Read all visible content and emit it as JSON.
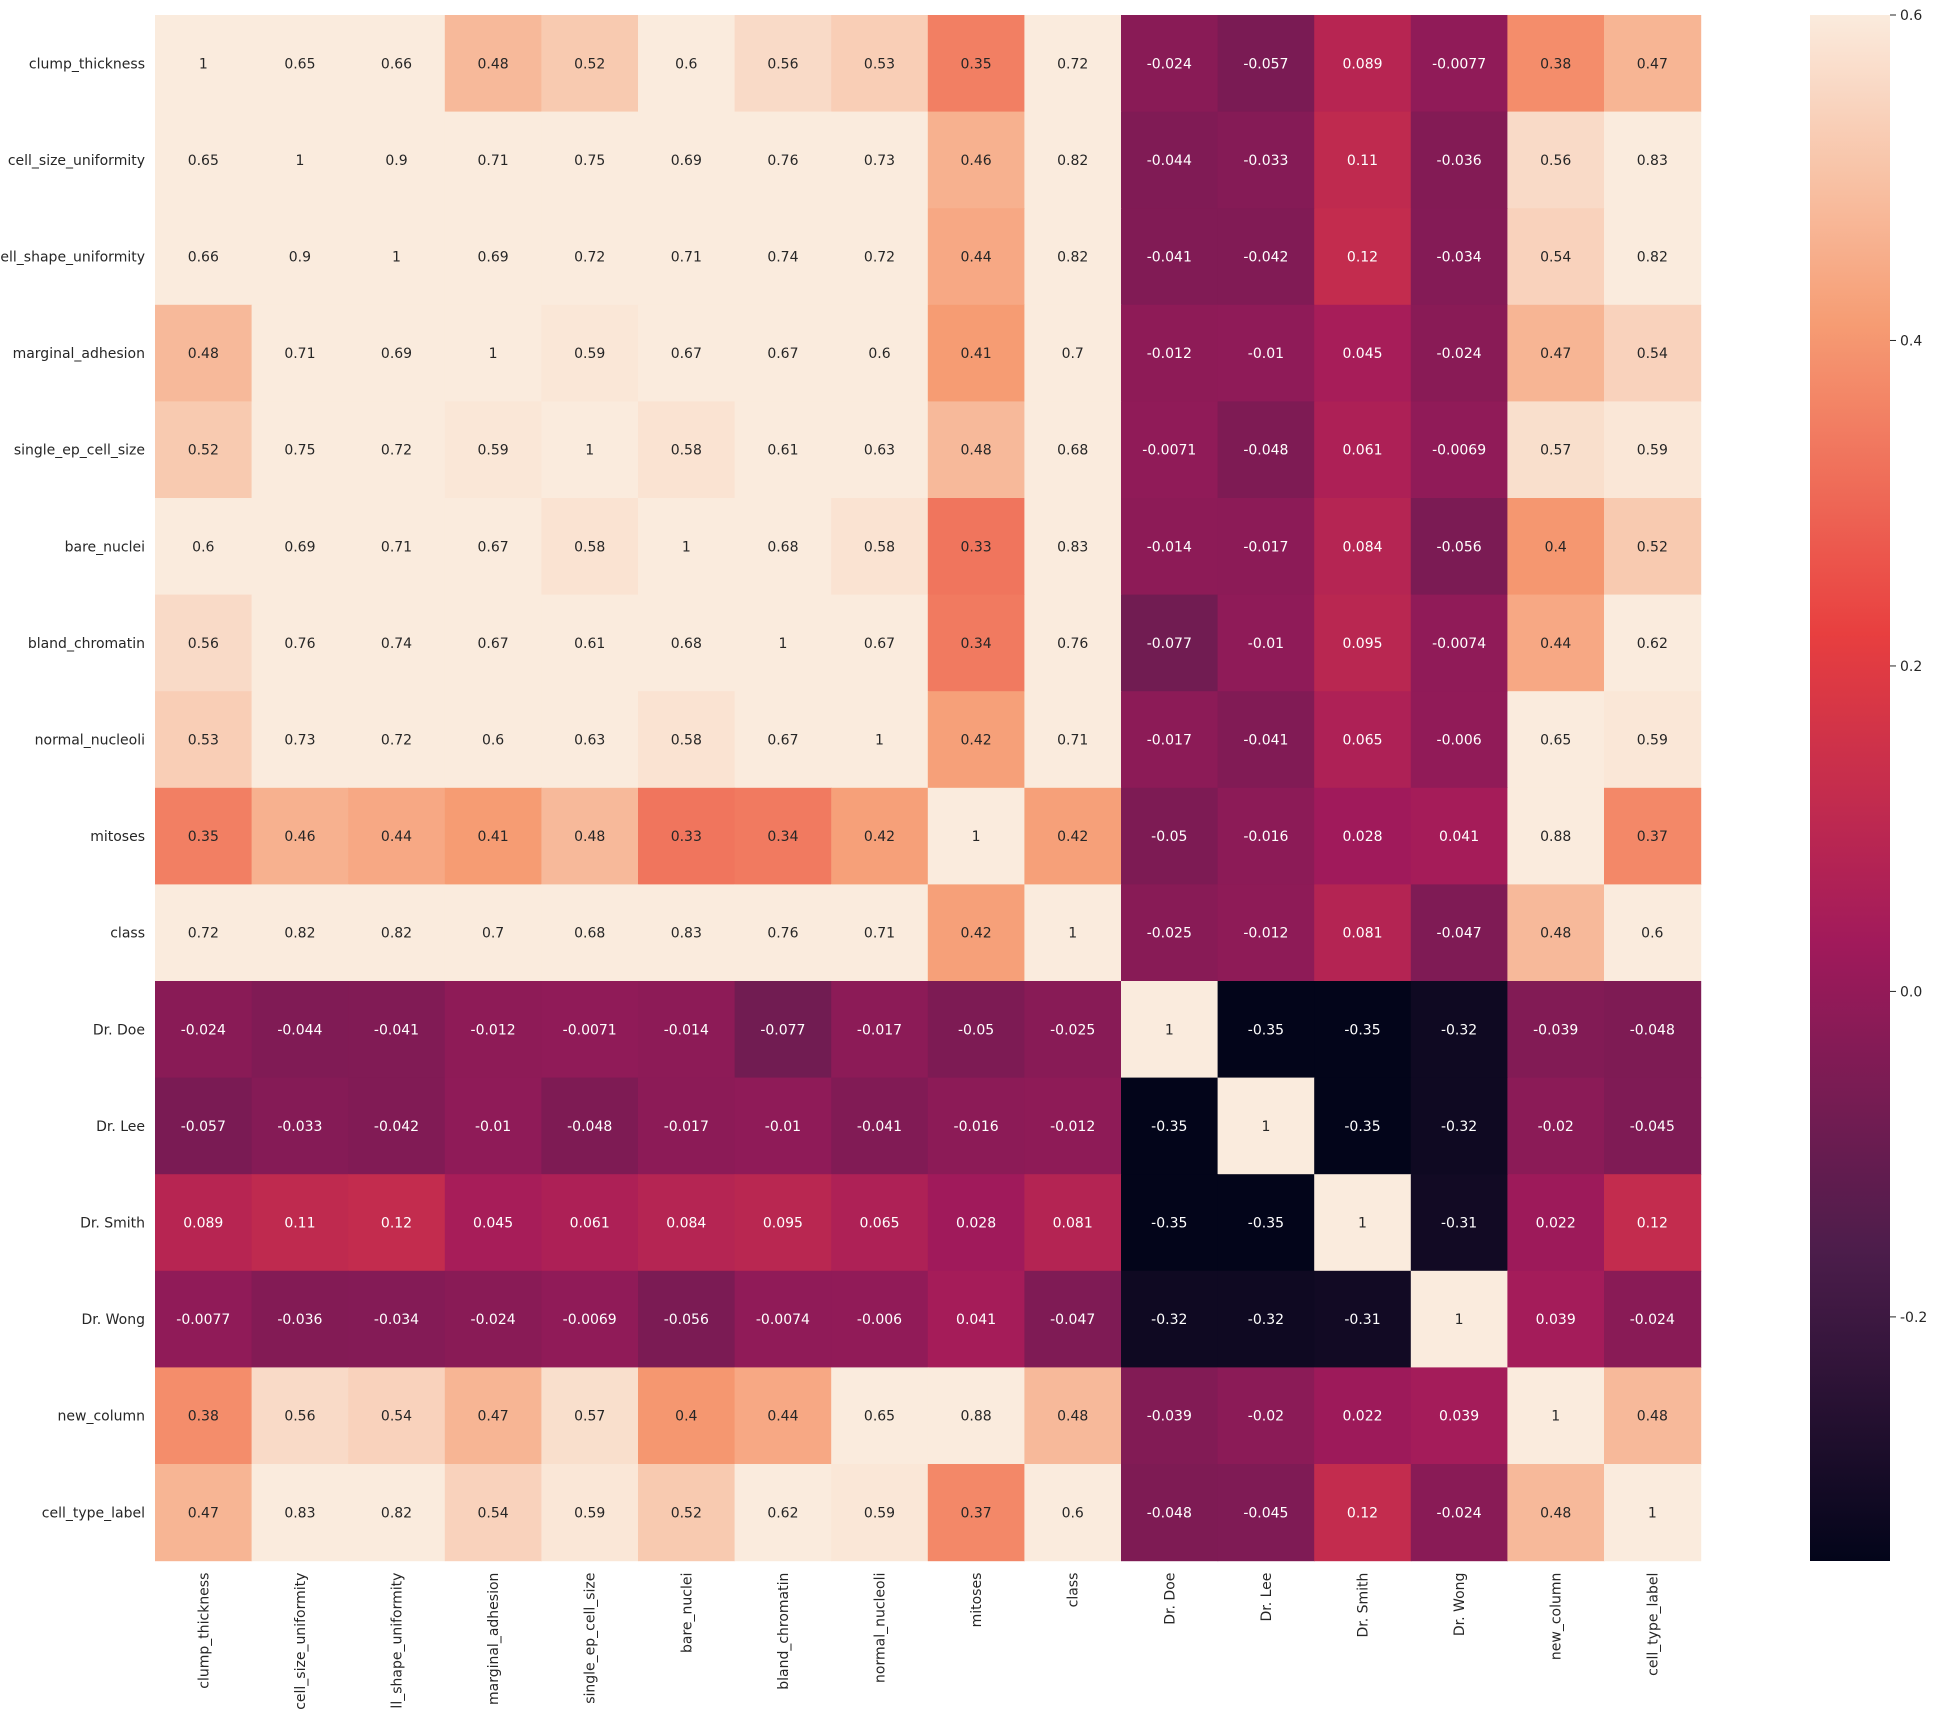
{
  "chart_data": {
    "type": "heatmap",
    "title": "",
    "xlabel": "",
    "ylabel": "",
    "rows": [
      "clump_thickness",
      "cell_size_uniformity",
      "cell_shape_uniformity",
      "marginal_adhesion",
      "single_ep_cell_size",
      "bare_nuclei",
      "bland_chromatin",
      "normal_nucleoli",
      "mitoses",
      "class",
      "Dr. Doe",
      "Dr. Lee",
      "Dr. Smith",
      "Dr. Wong",
      "new_column",
      "cell_type_label"
    ],
    "columns": [
      "clump_thickness",
      "cell_size_uniformity",
      "cell_shape_uniformity",
      "marginal_adhesion",
      "single_ep_cell_size",
      "bare_nuclei",
      "bland_chromatin",
      "normal_nucleoli",
      "mitoses",
      "class",
      "Dr. Doe",
      "Dr. Lee",
      "Dr. Smith",
      "Dr. Wong",
      "new_column",
      "cell_type_label"
    ],
    "values": [
      [
        1,
        0.65,
        0.66,
        0.48,
        0.52,
        0.6,
        0.56,
        0.53,
        0.35,
        0.72,
        -0.024,
        -0.057,
        0.089,
        -0.0077,
        0.38,
        0.47
      ],
      [
        0.65,
        1,
        0.9,
        0.71,
        0.75,
        0.69,
        0.76,
        0.73,
        0.46,
        0.82,
        -0.044,
        -0.033,
        0.11,
        -0.036,
        0.56,
        0.83
      ],
      [
        0.66,
        0.9,
        1,
        0.69,
        0.72,
        0.71,
        0.74,
        0.72,
        0.44,
        0.82,
        -0.041,
        -0.042,
        0.12,
        -0.034,
        0.54,
        0.82
      ],
      [
        0.48,
        0.71,
        0.69,
        1,
        0.59,
        0.67,
        0.67,
        0.6,
        0.41,
        0.7,
        -0.012,
        -0.01,
        0.045,
        -0.024,
        0.47,
        0.54
      ],
      [
        0.52,
        0.75,
        0.72,
        0.59,
        1,
        0.58,
        0.61,
        0.63,
        0.48,
        0.68,
        -0.0071,
        -0.048,
        0.061,
        -0.0069,
        0.57,
        0.59
      ],
      [
        0.6,
        0.69,
        0.71,
        0.67,
        0.58,
        1,
        0.68,
        0.58,
        0.33,
        0.83,
        -0.014,
        -0.017,
        0.084,
        -0.056,
        0.4,
        0.52
      ],
      [
        0.56,
        0.76,
        0.74,
        0.67,
        0.61,
        0.68,
        1,
        0.67,
        0.34,
        0.76,
        -0.077,
        -0.01,
        0.095,
        -0.0074,
        0.44,
        0.62
      ],
      [
        0.53,
        0.73,
        0.72,
        0.6,
        0.63,
        0.58,
        0.67,
        1,
        0.42,
        0.71,
        -0.017,
        -0.041,
        0.065,
        -0.006,
        0.65,
        0.59
      ],
      [
        0.35,
        0.46,
        0.44,
        0.41,
        0.48,
        0.33,
        0.34,
        0.42,
        1,
        0.42,
        -0.05,
        -0.016,
        0.028,
        0.041,
        0.88,
        0.37
      ],
      [
        0.72,
        0.82,
        0.82,
        0.7,
        0.68,
        0.83,
        0.76,
        0.71,
        0.42,
        1,
        -0.025,
        -0.012,
        0.081,
        -0.047,
        0.48,
        0.6
      ],
      [
        -0.024,
        -0.044,
        -0.041,
        -0.012,
        -0.0071,
        -0.014,
        -0.077,
        -0.017,
        -0.05,
        -0.025,
        1,
        -0.35,
        -0.35,
        -0.32,
        -0.039,
        -0.048
      ],
      [
        -0.057,
        -0.033,
        -0.042,
        -0.01,
        -0.048,
        -0.017,
        -0.01,
        -0.041,
        -0.016,
        -0.012,
        -0.35,
        1,
        -0.35,
        -0.32,
        -0.02,
        -0.045
      ],
      [
        0.089,
        0.11,
        0.12,
        0.045,
        0.061,
        0.084,
        0.095,
        0.065,
        0.028,
        0.081,
        -0.35,
        -0.35,
        1,
        -0.31,
        0.022,
        0.12
      ],
      [
        -0.0077,
        -0.036,
        -0.034,
        -0.024,
        -0.0069,
        -0.056,
        -0.0074,
        -0.006,
        0.041,
        -0.047,
        -0.32,
        -0.32,
        -0.31,
        1,
        0.039,
        -0.024
      ],
      [
        0.38,
        0.56,
        0.54,
        0.47,
        0.57,
        0.4,
        0.44,
        0.65,
        0.88,
        0.48,
        -0.039,
        -0.02,
        0.022,
        0.039,
        1,
        0.48
      ],
      [
        0.47,
        0.83,
        0.82,
        0.54,
        0.59,
        0.52,
        0.62,
        0.59,
        0.37,
        0.6,
        -0.048,
        -0.045,
        0.12,
        -0.024,
        0.48,
        1
      ]
    ],
    "colorbar": {
      "vmin": -0.35,
      "vmax": 0.6,
      "ticks": [
        -0.2,
        0.0,
        0.2,
        0.4,
        0.6
      ],
      "tick_labels": [
        "-0.2",
        "0.0",
        "0.2",
        "0.4",
        "0.6"
      ],
      "colormap": "rocket",
      "colormap_stops": [
        "#03051a",
        "#4c1d4b",
        "#a11a5b",
        "#e83f3f",
        "#f69c73",
        "#faebdd"
      ]
    },
    "grid": false,
    "legend": "colorbar-right"
  }
}
